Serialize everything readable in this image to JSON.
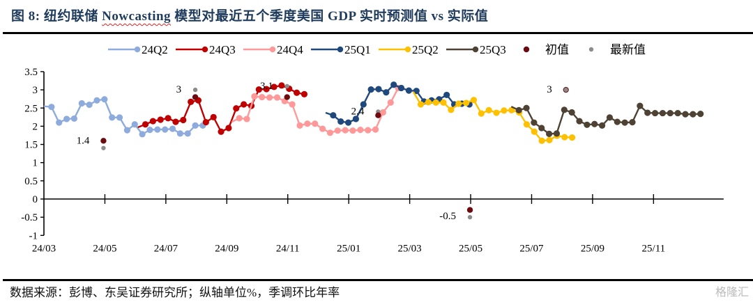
{
  "header": {
    "figure_label": "图 8:",
    "title_pre": "纽约联储 ",
    "title_wavy": "Nowcasting",
    "title_post": " 模型对最近五个季度美国 GDP 实时预测值 vs 实际值"
  },
  "footer": {
    "source": "数据来源：彭博、东吴证券研究所；纵轴单位%，季调环比年率",
    "watermark": "格隆汇"
  },
  "colors": {
    "24Q2": "#8eabdd",
    "24Q3": "#c00000",
    "24Q4": "#ff9999",
    "25Q1": "#1f497d",
    "25Q2": "#ffc000",
    "25Q3": "#4d4233",
    "initial": "#6b0a0f",
    "latest": "#8c8c8c"
  },
  "chart_data": {
    "type": "line",
    "title": "纽约联储 Nowcasting 模型对最近五个季度美国 GDP 实时预测值 vs 实际值",
    "xlabel": "",
    "ylabel": "%",
    "ylim": [
      -1,
      3.5
    ],
    "yticks": [
      3.5,
      3,
      2.5,
      2,
      1.5,
      1,
      0.5,
      0,
      -0.5,
      -1
    ],
    "ytick_labels": [
      "3.5",
      "3",
      "2.5",
      "2",
      "1.5",
      "1",
      "0.5",
      "0",
      "-0.5",
      "-1"
    ],
    "x_unit": "weeks since 24/03",
    "xlim": [
      0,
      97
    ],
    "xticks": [
      0,
      8.7,
      17.4,
      26.1,
      34.8,
      43.5,
      52.2,
      60.9,
      69.6,
      78.3,
      87
    ],
    "xtick_labels": [
      "24/03",
      "24/05",
      "24/07",
      "24/09",
      "24/11",
      "25/01",
      "25/03",
      "25/05",
      "25/07",
      "25/09",
      "25/11"
    ],
    "legend_position": "top",
    "series": [
      {
        "name": "24Q2",
        "start_week": 0,
        "lead_in": true,
        "values": [
          2.55,
          2.53,
          2.1,
          2.2,
          2.21,
          2.63,
          2.59,
          2.71,
          2.74,
          2.24,
          2.24,
          1.89,
          2.05,
          1.78,
          1.9,
          1.91,
          1.91,
          1.93,
          1.8,
          1.8,
          2.02,
          2.02
        ]
      },
      {
        "name": "24Q3",
        "start_week": 13.4,
        "lead_in": true,
        "values": [
          1.97,
          2.05,
          2.14,
          2.18,
          2.22,
          2.12,
          2.17,
          2.67,
          2.71,
          2.11,
          2.25,
          1.85,
          1.95,
          2.49,
          2.6,
          2.56,
          3.01,
          3.02,
          3.08,
          3.12,
          3.03,
          2.92,
          2.88
        ]
      },
      {
        "name": "24Q4",
        "start_week": 26.8,
        "lead_in": true,
        "values": [
          2.12,
          2.22,
          2.2,
          2.82,
          2.8,
          2.79,
          2.79,
          2.69,
          2.6,
          2.02,
          2.07,
          2.07,
          1.93,
          1.82,
          1.88,
          1.89,
          1.88,
          1.9,
          1.89,
          1.91,
          2.38,
          2.65,
          3.05
        ]
      },
      {
        "name": "25Q1",
        "start_week": 40.2,
        "lead_in": true,
        "values": [
          2.37,
          2.3,
          2.13,
          2.1,
          2.2,
          2.6,
          3.01,
          3.02,
          2.93,
          3.14,
          3.05,
          2.98,
          2.97,
          2.68,
          2.71,
          2.74,
          2.86,
          2.6,
          2.62,
          2.6
        ]
      },
      {
        "name": "25Q2",
        "start_week": 52.7,
        "lead_in": true,
        "values": [
          2.95,
          2.6,
          2.66,
          2.65,
          2.65,
          2.45,
          2.62,
          2.64,
          2.72,
          2.35,
          2.44,
          2.37,
          2.43,
          2.44,
          2.38,
          2.05,
          1.85,
          1.6,
          1.62,
          1.74,
          1.7,
          1.69
        ]
      },
      {
        "name": "25Q3",
        "start_week": 66.7,
        "lead_in": true,
        "values": [
          2.54,
          2.44,
          2.5,
          2.1,
          1.95,
          1.79,
          1.8,
          2.45,
          2.38,
          2.14,
          2.04,
          2.06,
          2.02,
          2.24,
          2.12,
          2.1,
          2.11,
          2.56,
          2.37,
          2.36,
          2.36,
          2.36,
          2.36,
          2.33,
          2.33,
          2.34
        ]
      }
    ],
    "actual_points": [
      {
        "quarter": "24Q2",
        "week": 8.5,
        "initial": 1.6,
        "latest": 1.4,
        "label": "1.4"
      },
      {
        "quarter": "24Q3",
        "week": 21.6,
        "initial": 2.8,
        "latest": 3.0,
        "label": "3"
      },
      {
        "quarter": "24Q4",
        "week": 34.7,
        "initial": 2.8,
        "latest": 3.1,
        "label": "3.1"
      },
      {
        "quarter": "25Q1",
        "week": 47.7,
        "initial": 2.3,
        "latest": 2.4,
        "label": "2.4"
      },
      {
        "quarter": "25Q2",
        "week": 60.8,
        "initial": -0.3,
        "latest": -0.5,
        "label": "-0.5"
      },
      {
        "quarter": "25Q3",
        "week": 74.5,
        "initial": 3.0,
        "latest": 3.0,
        "label": "3"
      }
    ],
    "legend": [
      "24Q2",
      "24Q3",
      "24Q4",
      "25Q1",
      "25Q2",
      "25Q3",
      "初值",
      "最新值"
    ]
  }
}
